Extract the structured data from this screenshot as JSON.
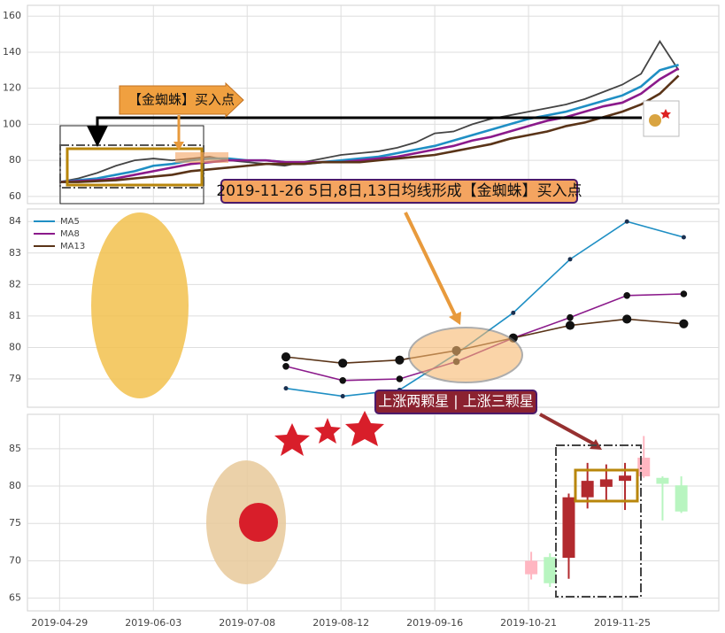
{
  "chart_data": [
    {
      "type": "line",
      "x": [
        "2019-04-29",
        "2019-05-06",
        "2019-05-13",
        "2019-05-20",
        "2019-05-27",
        "2019-06-03",
        "2019-06-10",
        "2019-06-17",
        "2019-06-24",
        "2019-07-01",
        "2019-07-08",
        "2019-07-15",
        "2019-07-22",
        "2019-07-29",
        "2019-08-05",
        "2019-08-12",
        "2019-08-19",
        "2019-08-26",
        "2019-09-02",
        "2019-09-09",
        "2019-09-16",
        "2019-09-23",
        "2019-09-30",
        "2019-10-07",
        "2019-10-14",
        "2019-10-21",
        "2019-10-28",
        "2019-11-04",
        "2019-11-11",
        "2019-11-18",
        "2019-11-25",
        "2019-12-02",
        "2019-12-09",
        "2019-12-16"
      ],
      "series": [
        {
          "color": "#444444",
          "values": [
            68,
            70,
            73,
            77,
            80,
            81,
            80,
            81,
            82,
            80,
            79,
            78,
            77,
            79,
            81,
            83,
            84,
            85,
            87,
            90,
            95,
            96,
            100,
            103,
            105,
            107,
            109,
            111,
            114,
            118,
            122,
            128,
            146,
            130
          ]
        },
        {
          "color": "#1f8fc4",
          "values": [
            68,
            69,
            70,
            72,
            74,
            77,
            78,
            80,
            81,
            81,
            80,
            80,
            79,
            78,
            79,
            80,
            81,
            82,
            84,
            86,
            88,
            91,
            94,
            97,
            100,
            103,
            105,
            107,
            110,
            113,
            116,
            121,
            130,
            133
          ]
        },
        {
          "color": "#8b1a8b",
          "values": [
            68,
            68.5,
            69,
            70,
            72,
            74,
            76,
            78,
            79,
            80,
            80,
            80,
            79,
            79,
            79,
            79,
            80,
            81,
            82,
            84,
            86,
            88,
            91,
            93,
            96,
            99,
            102,
            104,
            107,
            110,
            112,
            117,
            125,
            131
          ]
        },
        {
          "color": "#5a3418",
          "values": [
            68,
            68,
            68.5,
            69,
            70,
            71,
            72,
            74,
            75,
            76,
            77,
            78,
            78,
            78,
            79,
            79,
            79,
            80,
            81,
            82,
            83,
            85,
            87,
            89,
            92,
            94,
            96,
            99,
            101,
            104,
            107,
            111,
            117,
            127
          ]
        }
      ],
      "xlim": [
        "2019-04-17",
        "2019-12-31"
      ],
      "ylim": [
        56,
        166
      ],
      "yticks": [
        60,
        80,
        100,
        120,
        140,
        160
      ],
      "grid": true,
      "annotations": [
        {
          "text": "【金蜘蛛】买入点"
        }
      ]
    },
    {
      "type": "line",
      "categories": [
        null,
        null,
        null,
        null,
        null,
        null,
        null,
        null
      ],
      "series": [
        {
          "name": "MA5",
          "color": "#1f8fc4",
          "values": [
            78.7,
            78.45,
            78.65,
            79.8,
            81.1,
            82.8,
            84.0,
            83.5
          ]
        },
        {
          "name": "MA8",
          "color": "#8b1a8b",
          "values": [
            79.4,
            78.95,
            79.0,
            79.55,
            80.3,
            80.95,
            81.65,
            81.7
          ]
        },
        {
          "name": "MA13",
          "color": "#5a3418",
          "values": [
            79.7,
            79.5,
            79.6,
            79.9,
            80.3,
            80.7,
            80.9,
            80.75
          ]
        }
      ],
      "ylim": [
        78.1,
        84.4
      ],
      "yticks": [
        79,
        80,
        81,
        82,
        83,
        84
      ],
      "grid": true,
      "legend": "upper-left",
      "annotations": [
        {
          "text": "2019-11-26 5日,8日,13日均线形成【金蜘蛛】买入点"
        }
      ]
    },
    {
      "type": "candlestick",
      "x": [
        "2019-10-22",
        "2019-10-29",
        "2019-11-05",
        "2019-11-12",
        "2019-11-19",
        "2019-11-26",
        "2019-12-03",
        "2019-12-10",
        "2019-12-17"
      ],
      "open": [
        68.2,
        70.5,
        70.4,
        78.5,
        79.9,
        80.7,
        81.3,
        81.1,
        80.1
      ],
      "close": [
        70.0,
        67.0,
        78.5,
        80.7,
        80.9,
        81.4,
        83.8,
        80.3,
        76.6
      ],
      "high": [
        71.2,
        71.0,
        79.0,
        83.1,
        82.9,
        83.1,
        86.7,
        81.3,
        81.3
      ],
      "low": [
        67.5,
        66.5,
        67.6,
        77.0,
        78.0,
        76.8,
        81.1,
        75.4,
        76.4
      ],
      "colors": [
        "#ffb6c1",
        "#b8f5c0",
        "#b22a2e",
        "#b22a2e",
        "#b22a2e",
        "#b22a2e",
        "#ffb6c1",
        "#b8f5c0",
        "#b8f5c0"
      ],
      "xlim": [
        "2019-04-17",
        "2019-12-31"
      ],
      "xticks": [
        "2019-04-29",
        "2019-06-03",
        "2019-07-08",
        "2019-08-12",
        "2019-09-16",
        "2019-10-21",
        "2019-11-25"
      ],
      "ylim": [
        63.3,
        89.6
      ],
      "yticks": [
        65,
        70,
        75,
        80,
        85
      ],
      "grid": true,
      "annotations": [
        {
          "text": "上涨两颗星 | 上涨三颗星"
        }
      ]
    }
  ]
}
